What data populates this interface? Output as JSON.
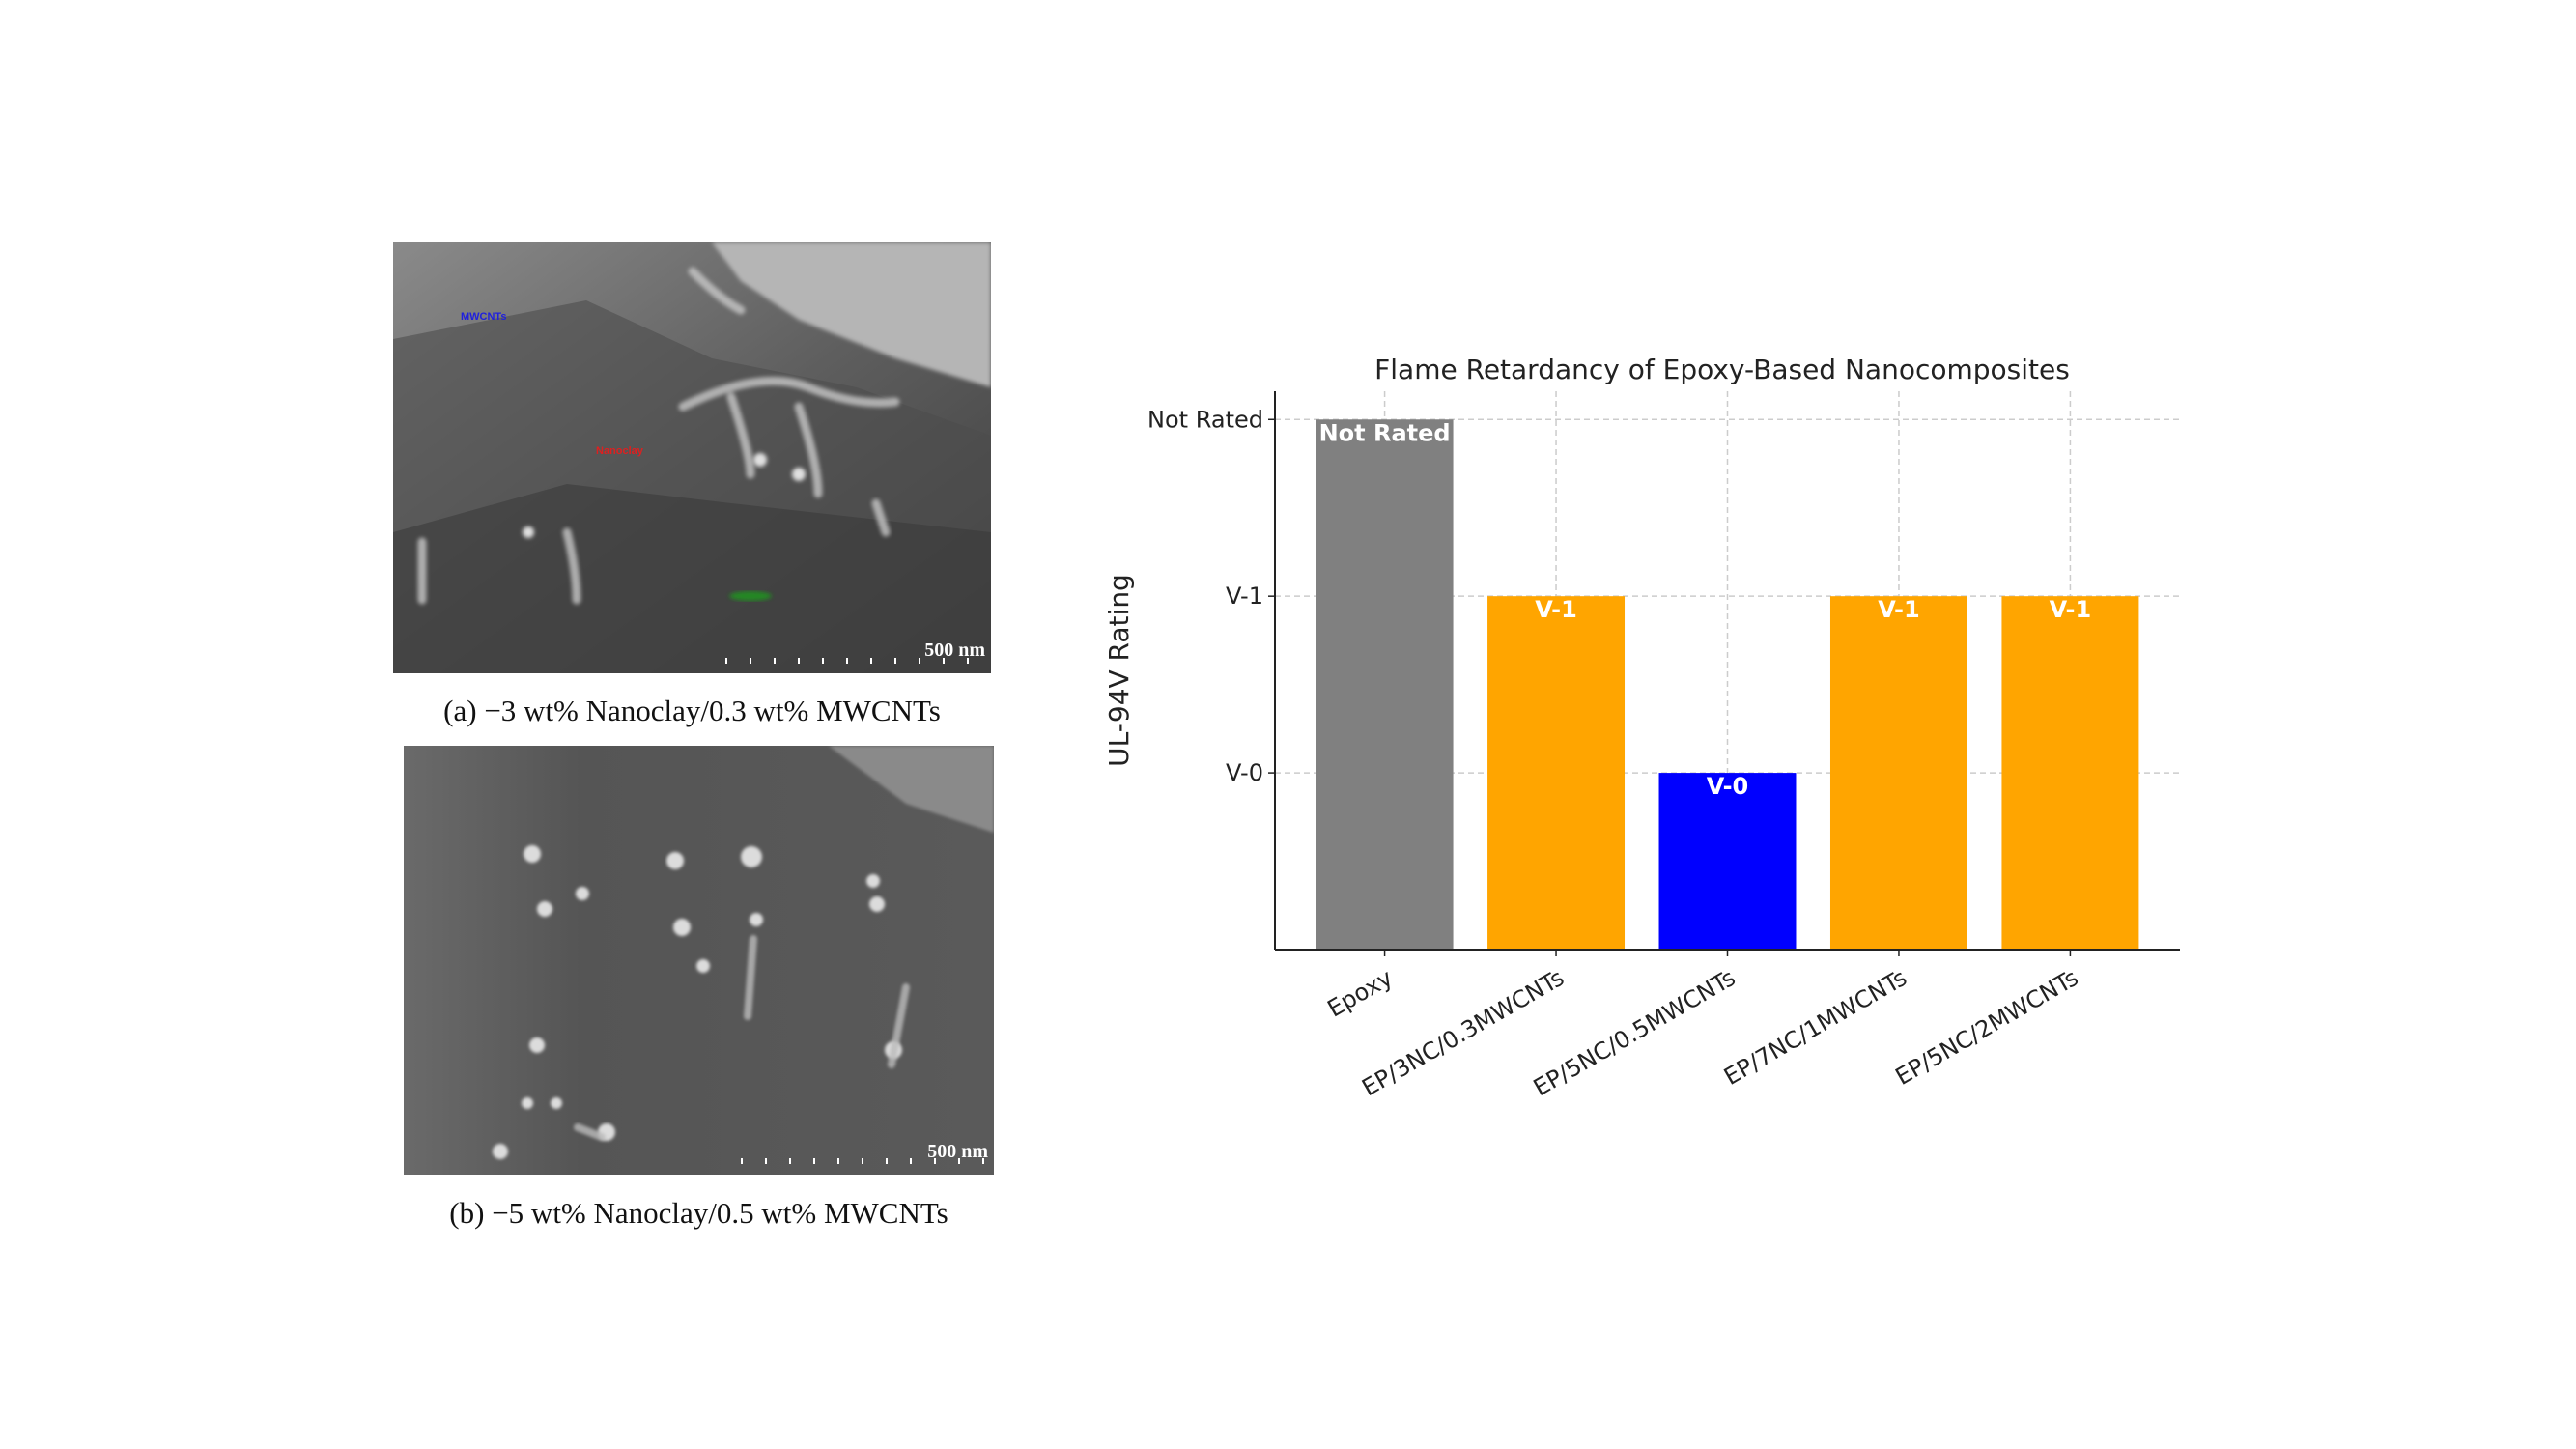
{
  "figure_a": {
    "scale_bar": "500 nm",
    "labels": {
      "mwcnts": "MWCNTs",
      "nanoclay": "Nanoclay"
    },
    "caption": "(a) −3 wt% Nanoclay/0.3 wt% MWCNTs"
  },
  "figure_b": {
    "scale_bar": "500 nm",
    "caption": "(b) −5 wt% Nanoclay/0.5 wt% MWCNTs"
  },
  "chart_data": {
    "type": "bar",
    "title": "Flame Retardancy of Epoxy-Based Nanocomposites",
    "xlabel": "",
    "ylabel": "UL-94V Rating",
    "categories": [
      "Epoxy",
      "EP/3NC/0.3MWCNTs",
      "EP/5NC/0.5MWCNTs",
      "EP/7NC/1MWCNTs",
      "EP/5NC/2MWCNTs"
    ],
    "values": [
      3,
      2,
      1,
      2,
      2
    ],
    "bar_labels": [
      "Not Rated",
      "V-1",
      "V-0",
      "V-1",
      "V-1"
    ],
    "colors": [
      "#808080",
      "#ffa500",
      "#0000ff",
      "#ffa500",
      "#ffa500"
    ],
    "yticks": [
      {
        "value": 1,
        "label": "V-0"
      },
      {
        "value": 2,
        "label": "V-1"
      },
      {
        "value": 3,
        "label": "Not Rated"
      }
    ],
    "ylim": [
      0,
      3.16
    ],
    "grid": true
  }
}
